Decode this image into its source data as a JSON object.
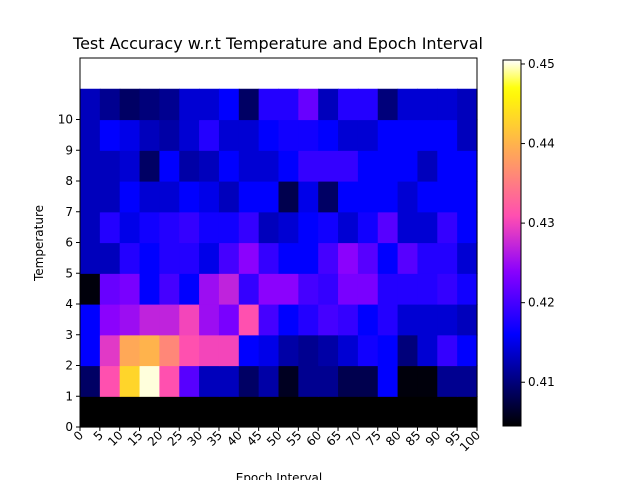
{
  "chart_data": {
    "type": "heatmap",
    "title": "Test Accuracy w.r.t Temperature and Epoch Interval",
    "xlabel": "Epoch Interval",
    "ylabel": "Temperature",
    "x_ticks": [
      "0",
      "5",
      "10",
      "15",
      "20",
      "25",
      "30",
      "35",
      "40",
      "45",
      "50",
      "55",
      "60",
      "65",
      "70",
      "75",
      "80",
      "85",
      "90",
      "95",
      "100"
    ],
    "y_ticks": [
      "0",
      "1",
      "2",
      "3",
      "4",
      "5",
      "6",
      "7",
      "8",
      "9",
      "10"
    ],
    "colorbar": {
      "colormap": "gnuplot2",
      "vmin": 0.4045,
      "vmax": 0.4505,
      "ticks": [
        "0.41",
        "0.42",
        "0.43",
        "0.44",
        "0.45"
      ],
      "tick_values": [
        0.41,
        0.42,
        0.43,
        0.44,
        0.45
      ]
    },
    "row_temperatures": [
      0,
      1,
      2,
      3,
      4,
      5,
      6,
      7,
      8,
      9,
      10,
      11
    ],
    "values": [
      [
        0.4045,
        0.4045,
        0.4045,
        0.4045,
        0.4045,
        0.4045,
        0.4045,
        0.4045,
        0.4045,
        0.4045,
        0.4045,
        0.4045,
        0.4045,
        0.4045,
        0.4045,
        0.4045,
        0.4045,
        0.4045,
        0.4045,
        0.4045
      ],
      [
        0.409,
        0.431,
        0.443,
        0.45,
        0.431,
        0.421,
        0.413,
        0.413,
        0.409,
        0.412,
        0.406,
        0.411,
        0.411,
        0.408,
        0.408,
        0.416,
        0.405,
        0.405,
        0.411,
        0.411
      ],
      [
        0.416,
        0.429,
        0.439,
        0.44,
        0.436,
        0.431,
        0.43,
        0.43,
        0.416,
        0.415,
        0.412,
        0.411,
        0.412,
        0.414,
        0.417,
        0.416,
        0.41,
        0.414,
        0.419,
        0.416
      ],
      [
        0.416,
        0.424,
        0.425,
        0.427,
        0.427,
        0.43,
        0.425,
        0.423,
        0.431,
        0.42,
        0.416,
        0.418,
        0.42,
        0.419,
        0.416,
        0.418,
        0.414,
        0.414,
        0.414,
        0.413
      ],
      [
        0.405,
        0.422,
        0.423,
        0.416,
        0.42,
        0.416,
        0.425,
        0.427,
        0.419,
        0.424,
        0.424,
        0.42,
        0.419,
        0.423,
        0.423,
        0.418,
        0.418,
        0.418,
        0.419,
        0.417
      ],
      [
        0.413,
        0.413,
        0.418,
        0.416,
        0.418,
        0.418,
        0.415,
        0.42,
        0.424,
        0.419,
        0.416,
        0.416,
        0.42,
        0.424,
        0.421,
        0.416,
        0.421,
        0.418,
        0.418,
        0.414
      ],
      [
        0.413,
        0.418,
        0.415,
        0.417,
        0.418,
        0.419,
        0.417,
        0.417,
        0.419,
        0.413,
        0.414,
        0.416,
        0.417,
        0.414,
        0.417,
        0.421,
        0.414,
        0.414,
        0.419,
        0.416
      ],
      [
        0.413,
        0.413,
        0.416,
        0.414,
        0.414,
        0.416,
        0.415,
        0.413,
        0.416,
        0.416,
        0.408,
        0.415,
        0.409,
        0.416,
        0.416,
        0.416,
        0.414,
        0.416,
        0.416,
        0.416
      ],
      [
        0.413,
        0.413,
        0.414,
        0.409,
        0.416,
        0.412,
        0.413,
        0.416,
        0.414,
        0.414,
        0.416,
        0.419,
        0.419,
        0.419,
        0.416,
        0.416,
        0.416,
        0.413,
        0.416,
        0.416
      ],
      [
        0.413,
        0.416,
        0.415,
        0.413,
        0.412,
        0.414,
        0.418,
        0.414,
        0.414,
        0.416,
        0.417,
        0.417,
        0.416,
        0.414,
        0.414,
        0.416,
        0.416,
        0.416,
        0.416,
        0.413
      ],
      [
        0.413,
        0.411,
        0.409,
        0.41,
        0.411,
        0.414,
        0.414,
        0.416,
        0.409,
        0.418,
        0.418,
        0.422,
        0.413,
        0.418,
        0.418,
        0.41,
        0.414,
        0.414,
        0.414,
        0.413
      ]
    ]
  }
}
